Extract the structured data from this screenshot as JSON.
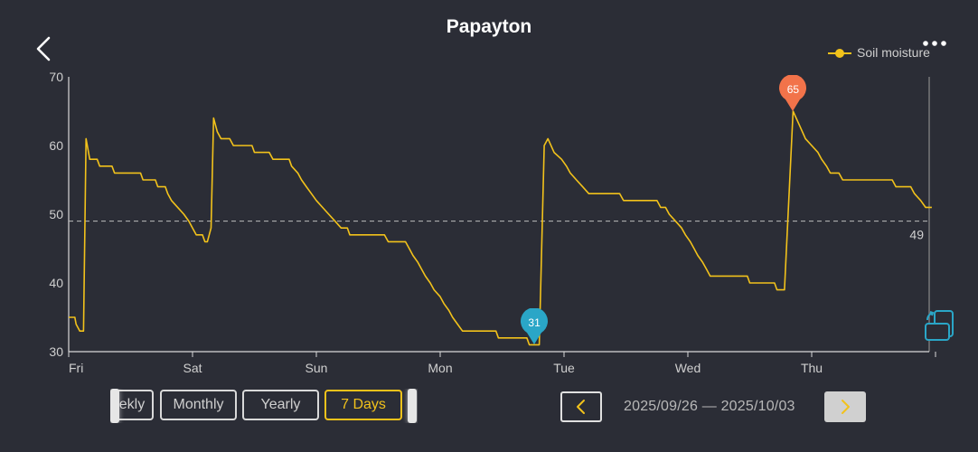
{
  "header": {
    "title": "Papayton",
    "back_icon": "chevron-left-icon",
    "more_icon": "more-dots-icon"
  },
  "legend": {
    "label": "Soil moisture",
    "color": "#f2c21b"
  },
  "chart_data": {
    "type": "line",
    "x_ticks": [
      "Fri",
      "Sat",
      "Sun",
      "Mon",
      "Tue",
      "Wed",
      "Thu"
    ],
    "x_range_days": [
      0,
      7
    ],
    "ylim": [
      30,
      70
    ],
    "y_ticks": [
      30,
      40,
      50,
      60,
      70
    ],
    "series": [
      {
        "name": "Soil moisture",
        "color": "#f2c21b",
        "points": [
          [
            0.0,
            35
          ],
          [
            0.05,
            35
          ],
          [
            0.06,
            34
          ],
          [
            0.09,
            33
          ],
          [
            0.12,
            33
          ],
          [
            0.14,
            61
          ],
          [
            0.17,
            58
          ],
          [
            0.23,
            58
          ],
          [
            0.25,
            57
          ],
          [
            0.35,
            57
          ],
          [
            0.37,
            56
          ],
          [
            0.58,
            56
          ],
          [
            0.6,
            55
          ],
          [
            0.7,
            55
          ],
          [
            0.72,
            54
          ],
          [
            0.78,
            54
          ],
          [
            0.8,
            53
          ],
          [
            0.83,
            52
          ],
          [
            0.88,
            51
          ],
          [
            0.93,
            50
          ],
          [
            0.97,
            49
          ],
          [
            1.0,
            48
          ],
          [
            1.03,
            47
          ],
          [
            1.08,
            47
          ],
          [
            1.1,
            46
          ],
          [
            1.12,
            46
          ],
          [
            1.15,
            48
          ],
          [
            1.17,
            64
          ],
          [
            1.2,
            62
          ],
          [
            1.23,
            61
          ],
          [
            1.3,
            61
          ],
          [
            1.33,
            60
          ],
          [
            1.48,
            60
          ],
          [
            1.5,
            59
          ],
          [
            1.62,
            59
          ],
          [
            1.65,
            58
          ],
          [
            1.78,
            58
          ],
          [
            1.8,
            57
          ],
          [
            1.85,
            56
          ],
          [
            1.88,
            55
          ],
          [
            1.92,
            54
          ],
          [
            1.96,
            53
          ],
          [
            2.0,
            52
          ],
          [
            2.05,
            51
          ],
          [
            2.1,
            50
          ],
          [
            2.15,
            49
          ],
          [
            2.2,
            48
          ],
          [
            2.25,
            48
          ],
          [
            2.27,
            47
          ],
          [
            2.55,
            47
          ],
          [
            2.58,
            46
          ],
          [
            2.72,
            46
          ],
          [
            2.75,
            45
          ],
          [
            2.78,
            44
          ],
          [
            2.82,
            43
          ],
          [
            2.85,
            42
          ],
          [
            2.88,
            41
          ],
          [
            2.92,
            40
          ],
          [
            2.95,
            39
          ],
          [
            3.0,
            38
          ],
          [
            3.03,
            37
          ],
          [
            3.07,
            36
          ],
          [
            3.1,
            35
          ],
          [
            3.14,
            34
          ],
          [
            3.18,
            33
          ],
          [
            3.45,
            33
          ],
          [
            3.47,
            32
          ],
          [
            3.7,
            32
          ],
          [
            3.72,
            31
          ],
          [
            3.8,
            31
          ],
          [
            3.84,
            60
          ],
          [
            3.87,
            61
          ],
          [
            3.92,
            59
          ],
          [
            3.98,
            58
          ],
          [
            4.02,
            57
          ],
          [
            4.05,
            56
          ],
          [
            4.1,
            55
          ],
          [
            4.15,
            54
          ],
          [
            4.2,
            53
          ],
          [
            4.45,
            53
          ],
          [
            4.48,
            52
          ],
          [
            4.75,
            52
          ],
          [
            4.78,
            51
          ],
          [
            4.82,
            51
          ],
          [
            4.85,
            50
          ],
          [
            4.9,
            49
          ],
          [
            4.95,
            48
          ],
          [
            4.98,
            47
          ],
          [
            5.02,
            46
          ],
          [
            5.05,
            45
          ],
          [
            5.08,
            44
          ],
          [
            5.12,
            43
          ],
          [
            5.15,
            42
          ],
          [
            5.18,
            41
          ],
          [
            5.48,
            41
          ],
          [
            5.5,
            40
          ],
          [
            5.7,
            40
          ],
          [
            5.72,
            39
          ],
          [
            5.78,
            39
          ],
          [
            5.85,
            65
          ],
          [
            5.9,
            63
          ],
          [
            5.95,
            61
          ],
          [
            6.0,
            60
          ],
          [
            6.05,
            59
          ],
          [
            6.08,
            58
          ],
          [
            6.12,
            57
          ],
          [
            6.15,
            56
          ],
          [
            6.22,
            56
          ],
          [
            6.25,
            55
          ],
          [
            6.65,
            55
          ],
          [
            6.68,
            54
          ],
          [
            6.8,
            54
          ],
          [
            6.83,
            53
          ],
          [
            6.88,
            52
          ],
          [
            6.92,
            51
          ],
          [
            6.97,
            51
          ]
        ]
      }
    ],
    "reference_line": {
      "value": 49,
      "label": "49",
      "style": "dashed"
    },
    "annotations": [
      {
        "type": "min",
        "label": "31",
        "x": 3.76,
        "y": 31,
        "color": "#2aa6c7"
      },
      {
        "type": "max",
        "label": "65",
        "x": 5.85,
        "y": 65,
        "color": "#f2734a"
      }
    ],
    "grid": false,
    "legend_position": "top-right"
  },
  "controls": {
    "tabs": [
      {
        "id": "weekly",
        "label": "ekly",
        "active": false
      },
      {
        "id": "monthly",
        "label": "Monthly",
        "active": false
      },
      {
        "id": "yearly",
        "label": "Yearly",
        "active": false
      },
      {
        "id": "7days",
        "label": "7 Days",
        "active": true
      }
    ],
    "date_range": "2025/09/26 — 2025/10/03",
    "prev_icon": "chevron-left-icon",
    "next_icon": "chevron-right-icon",
    "rotate_icon": "screen-rotate-icon"
  },
  "colors": {
    "background": "#2b2d36",
    "accent": "#f2c21b",
    "axis": "#d9d9d9"
  }
}
